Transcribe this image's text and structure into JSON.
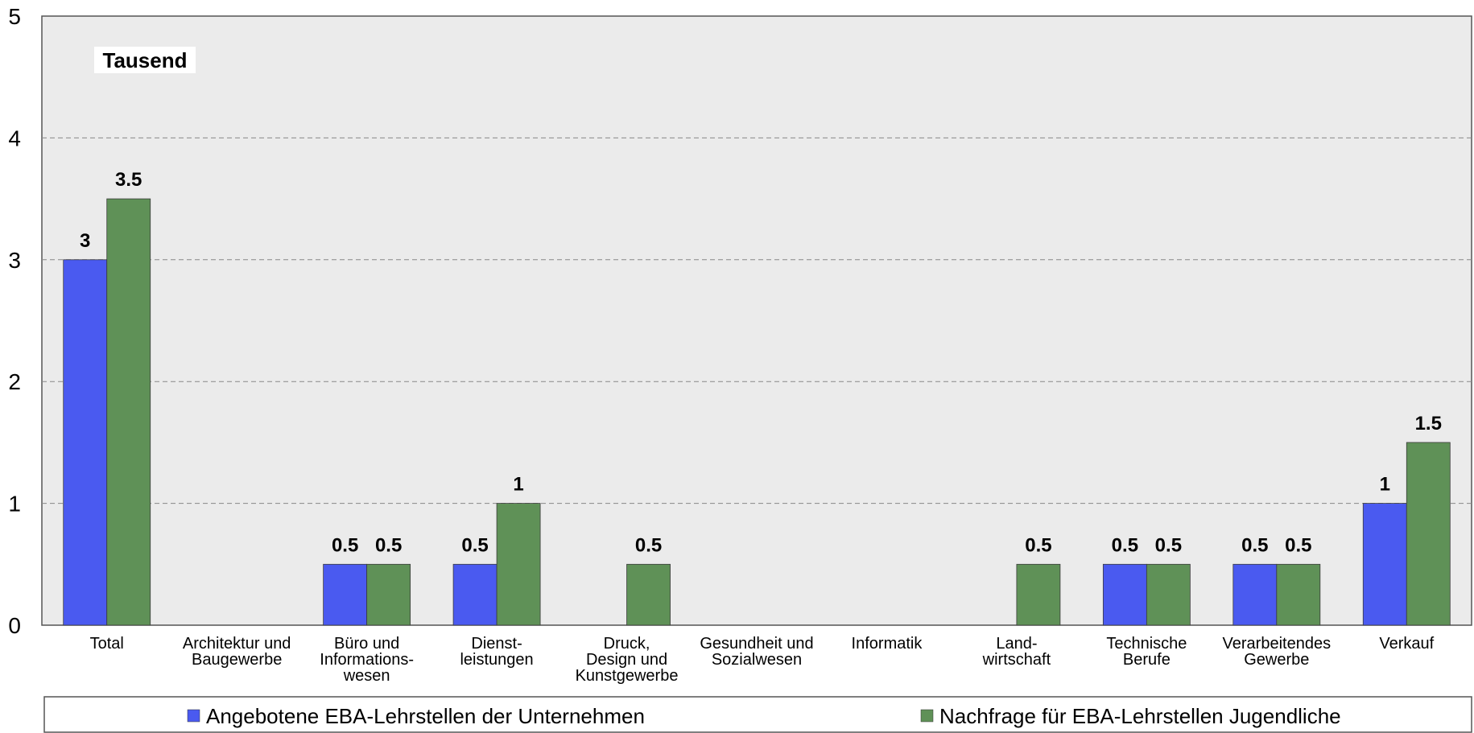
{
  "chart_data": {
    "type": "bar",
    "unit_label": "Tausend",
    "categories": [
      [
        "Total"
      ],
      [
        "Architektur und",
        "Baugewerbe"
      ],
      [
        "Büro und",
        "Informations-",
        "wesen"
      ],
      [
        "Dienst-",
        "leistungen"
      ],
      [
        "Druck,",
        "Design und",
        "Kunstgewerbe"
      ],
      [
        "Gesundheit und",
        "Sozialwesen"
      ],
      [
        "Informatik"
      ],
      [
        "Land-",
        "wirtschaft"
      ],
      [
        "Technische",
        "Berufe"
      ],
      [
        "Verarbeitendes",
        "Gewerbe"
      ],
      [
        "Verkauf"
      ]
    ],
    "series": [
      {
        "name": "Angebotene EBA-Lehrstellen der Unternehmen",
        "color": "#4a5af0",
        "values": [
          3,
          0,
          0.5,
          0.5,
          0,
          0,
          0,
          0,
          0.5,
          0.5,
          1
        ]
      },
      {
        "name": "Nachfrage für EBA-Lehrstellen Jugendliche",
        "color": "#5f9157",
        "values": [
          3.5,
          0,
          0.5,
          1,
          0.5,
          0,
          0,
          0.5,
          0.5,
          0.5,
          1.5
        ]
      }
    ],
    "yticks": [
      "0",
      "1",
      "2",
      "3",
      "4",
      "5"
    ],
    "ylim": [
      0,
      5
    ],
    "grid": true,
    "legend_position": "bottom",
    "plot_background": "#ebebeb"
  }
}
